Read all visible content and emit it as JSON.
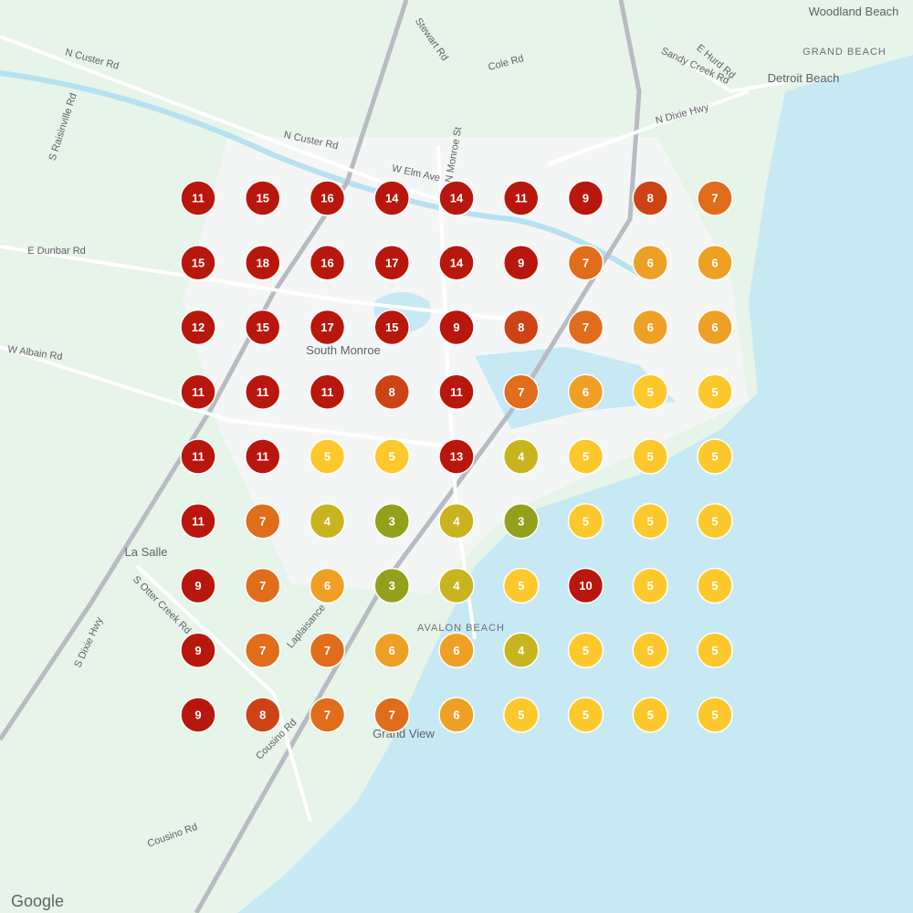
{
  "map": {
    "labels": {
      "woodland_beach": "Woodland Beach",
      "grand_beach": "GRAND BEACH",
      "detroit_beach": "Detroit Beach",
      "n_custer_rd": "N Custer Rd",
      "n_custer_rd_2": "N Custer Rd",
      "stewart_rd": "Stewart Rd",
      "cole_rd": "Cole Rd",
      "e_hurd_rd": "E Hurd Rd",
      "sandy_creek_rd": "Sandy Creek Rd",
      "n_dixie_hwy": "N Dixie Hwy",
      "s_raisinville_rd": "S Raisinville Rd",
      "w_elm_ave": "W Elm Ave",
      "n_monroe_st": "N Monroe St",
      "e_dunbar_rd": "E Dunbar Rd",
      "w_albain_rd": "W Albain Rd",
      "south_monroe": "South Monroe",
      "la_salle": "La Salle",
      "s_otter_creek_rd": "S Otter Creek Rd",
      "s_dixie_hwy": "S Dixie Hwy",
      "laplaisance": "Laplaisance",
      "avalon_beach": "AVALON BEACH",
      "grand_view": "Grand View",
      "cousino_rd": "Cousino Rd",
      "cousino_rd_2": "Cousino Rd",
      "google": "Google"
    },
    "grid": {
      "rows": [
        [
          11,
          15,
          16,
          14,
          14,
          11,
          9,
          8,
          7
        ],
        [
          15,
          18,
          16,
          17,
          14,
          9,
          7,
          6,
          6
        ],
        [
          12,
          15,
          17,
          15,
          9,
          8,
          7,
          6,
          6
        ],
        [
          11,
          11,
          11,
          8,
          11,
          7,
          6,
          5,
          5
        ],
        [
          11,
          11,
          5,
          5,
          13,
          4,
          5,
          5,
          5
        ],
        [
          11,
          7,
          4,
          3,
          4,
          3,
          5,
          5,
          5
        ],
        [
          9,
          7,
          6,
          3,
          4,
          5,
          10,
          5,
          5
        ],
        [
          9,
          7,
          7,
          6,
          6,
          4,
          5,
          5,
          5
        ],
        [
          9,
          8,
          7,
          7,
          6,
          5,
          5,
          5,
          5
        ]
      ]
    }
  }
}
